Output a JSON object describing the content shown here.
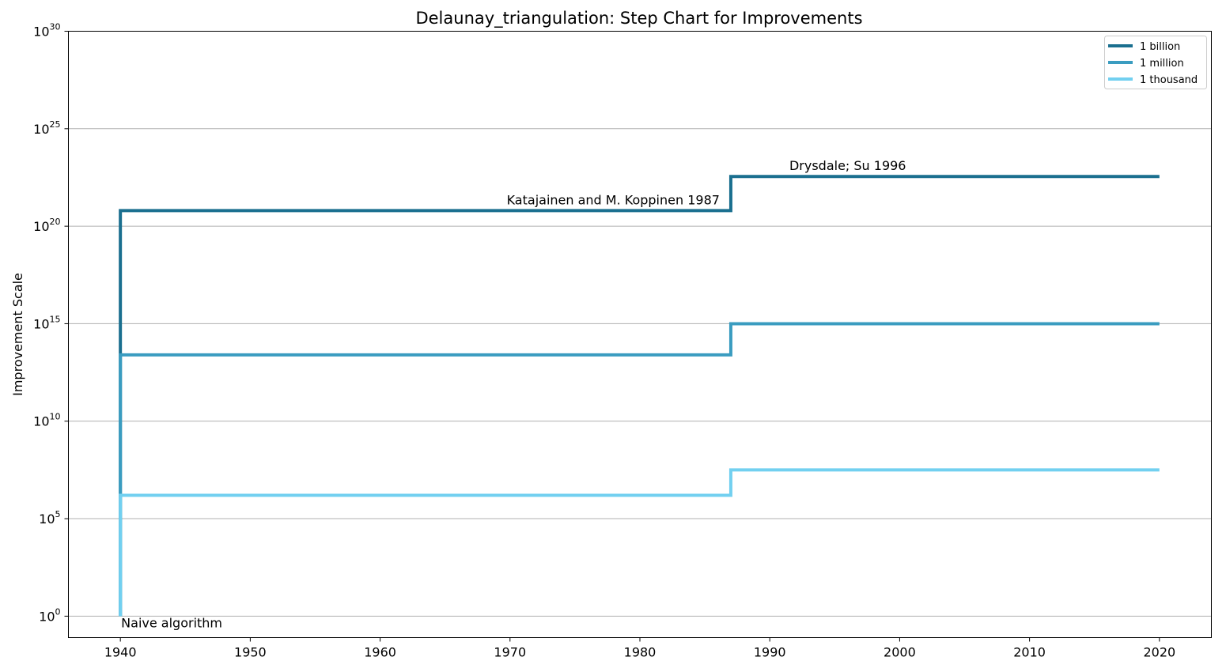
{
  "chart_data": {
    "type": "line",
    "step": true,
    "title": "Delaunay_triangulation: Step Chart for Improvements",
    "xlabel": "",
    "ylabel": "Improvement Scale",
    "yscale": "log",
    "xlim": [
      1936,
      2024
    ],
    "ylim_exponent": [
      -1.1,
      30
    ],
    "xticks": [
      "1940",
      "1950",
      "1960",
      "1970",
      "1980",
      "1990",
      "2000",
      "2010",
      "2020"
    ],
    "yticks": [
      {
        "base": "10",
        "exp": "0",
        "value_exp": 0
      },
      {
        "base": "10",
        "exp": "5",
        "value_exp": 5
      },
      {
        "base": "10",
        "exp": "10",
        "value_exp": 10
      },
      {
        "base": "10",
        "exp": "15",
        "value_exp": 15
      },
      {
        "base": "10",
        "exp": "20",
        "value_exp": 20
      },
      {
        "base": "10",
        "exp": "25",
        "value_exp": 25
      },
      {
        "base": "10",
        "exp": "30",
        "value_exp": 30
      }
    ],
    "grid": "horizontal",
    "legend_position": "top-right",
    "series": [
      {
        "name": "1 billion",
        "color": "#1a6f8f",
        "points": [
          {
            "x": 1940,
            "y_exp": 0
          },
          {
            "x": 1940,
            "y_exp": 20.8
          },
          {
            "x": 1987,
            "y_exp": 20.8
          },
          {
            "x": 1987,
            "y_exp": 22.55
          },
          {
            "x": 2020,
            "y_exp": 22.55
          }
        ]
      },
      {
        "name": "1 million",
        "color": "#3a9cc0",
        "points": [
          {
            "x": 1940,
            "y_exp": 0
          },
          {
            "x": 1940,
            "y_exp": 13.4
          },
          {
            "x": 1987,
            "y_exp": 13.4
          },
          {
            "x": 1987,
            "y_exp": 15
          },
          {
            "x": 2020,
            "y_exp": 15
          }
        ]
      },
      {
        "name": "1 thousand",
        "color": "#72d0f0",
        "points": [
          {
            "x": 1940,
            "y_exp": 0
          },
          {
            "x": 1940,
            "y_exp": 6.2
          },
          {
            "x": 1987,
            "y_exp": 6.2
          },
          {
            "x": 1987,
            "y_exp": 7.5
          },
          {
            "x": 2020,
            "y_exp": 7.5
          }
        ]
      }
    ],
    "annotations": [
      {
        "text": "Naive algorithm",
        "x": 1940,
        "y_exp": 0,
        "anchor": "start",
        "valign": "below"
      },
      {
        "text": "Katajainen and M. Koppinen 1987",
        "x": 1987,
        "y_exp": 20.8,
        "anchor": "end",
        "valign": "above"
      },
      {
        "text": "Drysdale; Su 1996",
        "x": 1996,
        "y_exp": 22.55,
        "anchor": "middle",
        "valign": "above"
      }
    ]
  }
}
